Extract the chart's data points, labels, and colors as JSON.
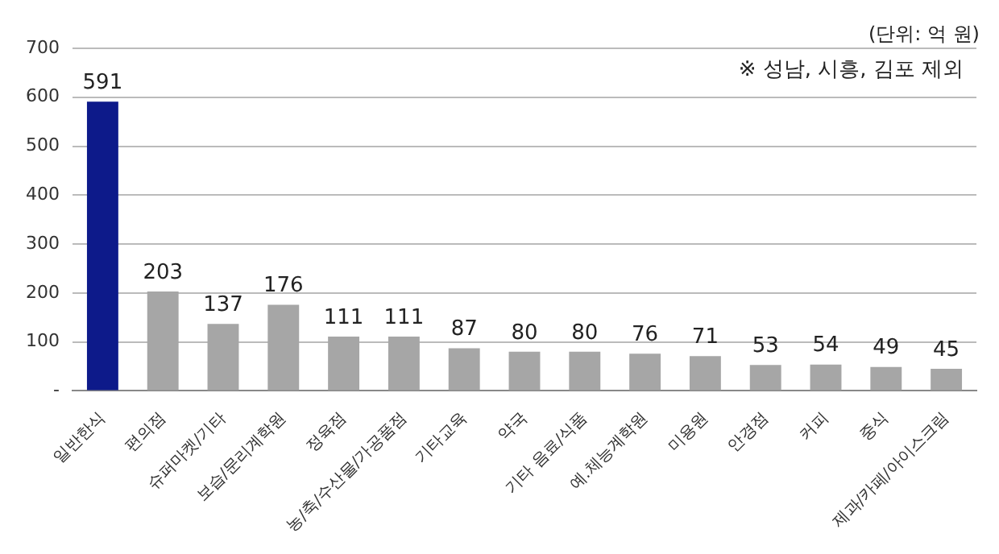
{
  "chart_data": {
    "type": "bar",
    "categories": [
      "일반한식",
      "편의점",
      "슈퍼마켓/기타",
      "보습/문리계학원",
      "정육점",
      "농/축/수산물/가공품점",
      "기타교육",
      "약국",
      "기타 음료/식품",
      "예.체능계학원",
      "미용원",
      "안경점",
      "커피",
      "중식",
      "제과/카페/아이스크림"
    ],
    "values": [
      591,
      203,
      137,
      176,
      111,
      111,
      87,
      80,
      80,
      76,
      71,
      53,
      54,
      49,
      45
    ],
    "colors": [
      "#0d1a8a",
      "#a6a6a6",
      "#a6a6a6",
      "#a6a6a6",
      "#a6a6a6",
      "#a6a6a6",
      "#a6a6a6",
      "#a6a6a6",
      "#a6a6a6",
      "#a6a6a6",
      "#a6a6a6",
      "#a6a6a6",
      "#a6a6a6",
      "#a6a6a6",
      "#a6a6a6"
    ],
    "ylim": [
      0,
      700
    ],
    "yticks": [
      {
        "value": 0,
        "label": "-"
      },
      100,
      200,
      300,
      400,
      500,
      600,
      700
    ],
    "grid": "y",
    "data_labels": true,
    "annotations": [
      "(단위: 억 원)",
      "※ 성남, 시흥, 김포 제외"
    ]
  }
}
